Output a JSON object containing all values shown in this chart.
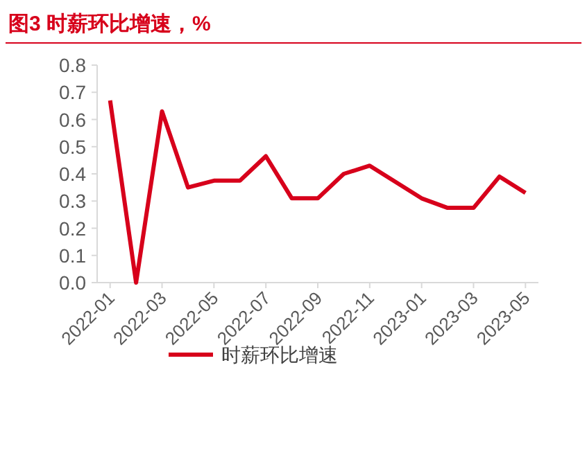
{
  "chart_data": {
    "type": "line",
    "title": "图3  时薪环比增速，%",
    "categories": [
      "2022-01",
      null,
      "2022-03",
      null,
      "2022-05",
      null,
      "2022-07",
      null,
      "2022-09",
      null,
      "2022-11",
      null,
      "2023-01",
      null,
      "2023-03",
      null,
      "2023-05"
    ],
    "series": [
      {
        "name": "时薪环比增速",
        "color": "#d7001b",
        "values": [
          0.67,
          0.0,
          0.63,
          0.35,
          0.375,
          0.375,
          0.465,
          0.31,
          0.31,
          0.4,
          0.43,
          0.37,
          0.31,
          0.275,
          0.275,
          0.39,
          0.33
        ]
      }
    ],
    "ylim": [
      0,
      0.8
    ],
    "yticks": [
      {
        "value": 0,
        "label": "0.0"
      },
      {
        "value": 0.1,
        "label": "0.1"
      },
      {
        "value": 0.2,
        "label": "0.2"
      },
      {
        "value": 0.3,
        "label": "0.3"
      },
      {
        "value": 0.4,
        "label": "0.4"
      },
      {
        "value": 0.5,
        "label": "0.5"
      },
      {
        "value": 0.6,
        "label": "0.6"
      },
      {
        "value": 0.7,
        "label": "0.7"
      },
      {
        "value": 0.8,
        "label": "0.8"
      }
    ],
    "legend": "bottom",
    "grid": false,
    "line_style": "solid",
    "marker": "none"
  }
}
